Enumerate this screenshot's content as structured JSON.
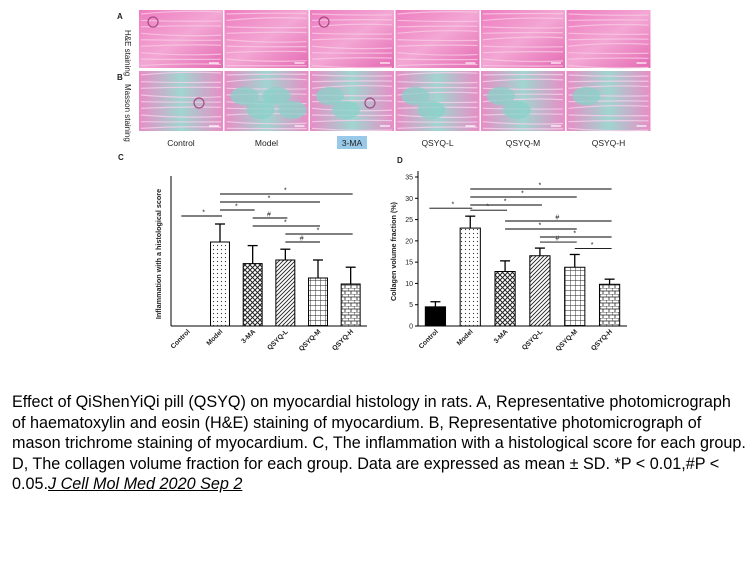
{
  "panels": {
    "a_letter": "A",
    "b_letter": "B",
    "c_letter": "C",
    "d_letter": "D",
    "row_a_label": "H&E staining",
    "row_b_label": "Masson staining",
    "groups": [
      "Control",
      "Model",
      "3-MA",
      "QSYQ-L",
      "QSYQ-M",
      "QSYQ-H"
    ]
  },
  "colors": {
    "he_pink": "#e86fb8",
    "he_light": "#f1b0d6",
    "masson_teal": "#8ad0c8",
    "highlight": "#99c9e8"
  },
  "chart_data": [
    {
      "panel": "C",
      "type": "bar",
      "ylabel": "Inflammation with a histological score",
      "categories": [
        "Control",
        "Model",
        "3-MA",
        "QSYQ-L",
        "QSYQ-M",
        "QSYQ-H"
      ],
      "values": [
        0,
        3.5,
        2.6,
        2.75,
        2.0,
        1.75
      ],
      "errors": [
        0,
        0.75,
        0.75,
        0.45,
        0.75,
        0.7
      ],
      "ylim": [
        0,
        6
      ],
      "patterns": [
        "solid",
        "dots",
        "crosshatch",
        "diagonal",
        "grid",
        "brick"
      ],
      "significance": [
        {
          "from": "Control",
          "to": "Model",
          "mark": "*"
        },
        {
          "from": "Model",
          "to": "QSYQ-H",
          "mark": "*"
        },
        {
          "from": "Model",
          "to": "QSYQ-M",
          "mark": "*"
        },
        {
          "from": "Model",
          "to": "3-MA",
          "mark": "*"
        },
        {
          "from": "3-MA",
          "to": "QSYQ-L",
          "mark": "#"
        },
        {
          "from": "3-MA",
          "to": "QSYQ-M",
          "mark": "*"
        },
        {
          "from": "QSYQ-L",
          "to": "QSYQ-H",
          "mark": "*"
        },
        {
          "from": "QSYQ-L",
          "to": "QSYQ-M",
          "mark": "#"
        }
      ]
    },
    {
      "panel": "D",
      "type": "bar",
      "ylabel": "Collagen volume fraction (%)",
      "categories": [
        "Control",
        "Model",
        "3-MA",
        "QSYQ-L",
        "QSYQ-M",
        "QSYQ-H"
      ],
      "values": [
        4.5,
        23,
        12.8,
        16.5,
        13.8,
        9.8
      ],
      "errors": [
        1.2,
        2.8,
        2.5,
        1.8,
        3.0,
        1.2
      ],
      "ylim": [
        0,
        35
      ],
      "yticks": [
        0,
        5,
        10,
        15,
        20,
        25,
        30,
        35
      ],
      "patterns": [
        "solid",
        "dots",
        "crosshatch",
        "diagonal",
        "grid",
        "brick"
      ],
      "significance": [
        {
          "from": "Control",
          "to": "Model",
          "mark": "*"
        },
        {
          "from": "Model",
          "to": "QSYQ-H",
          "mark": "*"
        },
        {
          "from": "Model",
          "to": "QSYQ-M",
          "mark": "*"
        },
        {
          "from": "Model",
          "to": "QSYQ-L",
          "mark": "*"
        },
        {
          "from": "Model",
          "to": "3-MA",
          "mark": "*"
        },
        {
          "from": "3-MA",
          "to": "QSYQ-H",
          "mark": "#"
        },
        {
          "from": "3-MA",
          "to": "QSYQ-M",
          "mark": "*"
        },
        {
          "from": "QSYQ-L",
          "to": "QSYQ-H",
          "mark": "*"
        },
        {
          "from": "QSYQ-L",
          "to": "QSYQ-M",
          "mark": "#"
        },
        {
          "from": "QSYQ-M",
          "to": "QSYQ-H",
          "mark": "*"
        }
      ]
    }
  ],
  "caption": {
    "text": "Effect of QiShenYiQi pill (QSYQ) on myocardial histology in rats. A, Representative photomicrograph of haematoxylin and eosin (H&E) staining of myocardium. B, Representative photomicrograph of mason trichrome staining of myocardium. C, The inflammation with a histological score for each group. D, The collagen volume fraction for each group. Data are expressed as mean ± SD. *P < 0.01,#P < 0.05.",
    "source": "J Cell Mol Med 2020 Sep 2"
  }
}
